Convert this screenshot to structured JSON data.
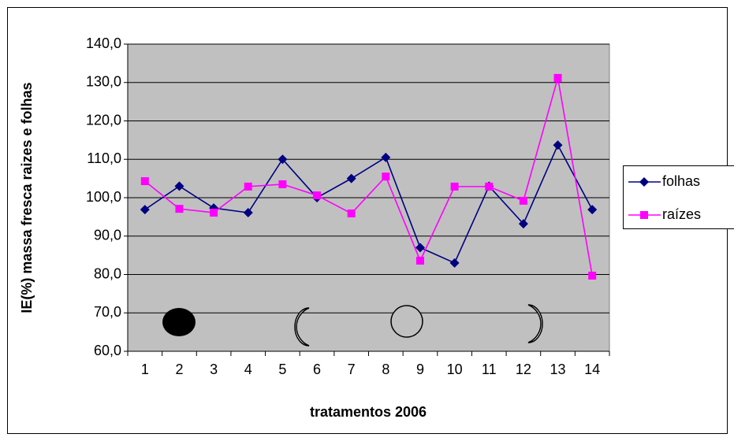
{
  "chart_data": {
    "type": "line",
    "x_label": "tratamentos 2006",
    "y_label": "IE(%) massa fresca raizes e folhas",
    "categories": [
      "1",
      "2",
      "3",
      "4",
      "5",
      "6",
      "7",
      "8",
      "9",
      "10",
      "11",
      "12",
      "13",
      "14"
    ],
    "series": [
      {
        "name": "folhas",
        "color": "#000080",
        "marker": "diamond",
        "values": [
          96.9,
          103,
          97.3,
          96.1,
          110,
          100,
          105,
          110.5,
          87,
          83,
          103,
          93.2,
          113.7,
          96.9
        ]
      },
      {
        "name": "raízes",
        "color": "#ff00ff",
        "marker": "square",
        "values": [
          104.3,
          97.1,
          96.1,
          102.9,
          103.5,
          100.6,
          95.9,
          105.5,
          83.6,
          102.9,
          102.9,
          99.2,
          131.2,
          79.7
        ]
      }
    ],
    "ylim": [
      60,
      140
    ],
    "yticks": [
      {
        "value": 60,
        "label": "60,0"
      },
      {
        "value": 70,
        "label": "70,0"
      },
      {
        "value": 80,
        "label": "80,0"
      },
      {
        "value": 90,
        "label": "90,0"
      },
      {
        "value": 100,
        "label": "100,0"
      },
      {
        "value": 110,
        "label": "110,0"
      },
      {
        "value": 120,
        "label": "120,0"
      },
      {
        "value": 130,
        "label": "130,0"
      },
      {
        "value": 140,
        "label": "140,0"
      }
    ],
    "grid": true,
    "legend": "right"
  }
}
